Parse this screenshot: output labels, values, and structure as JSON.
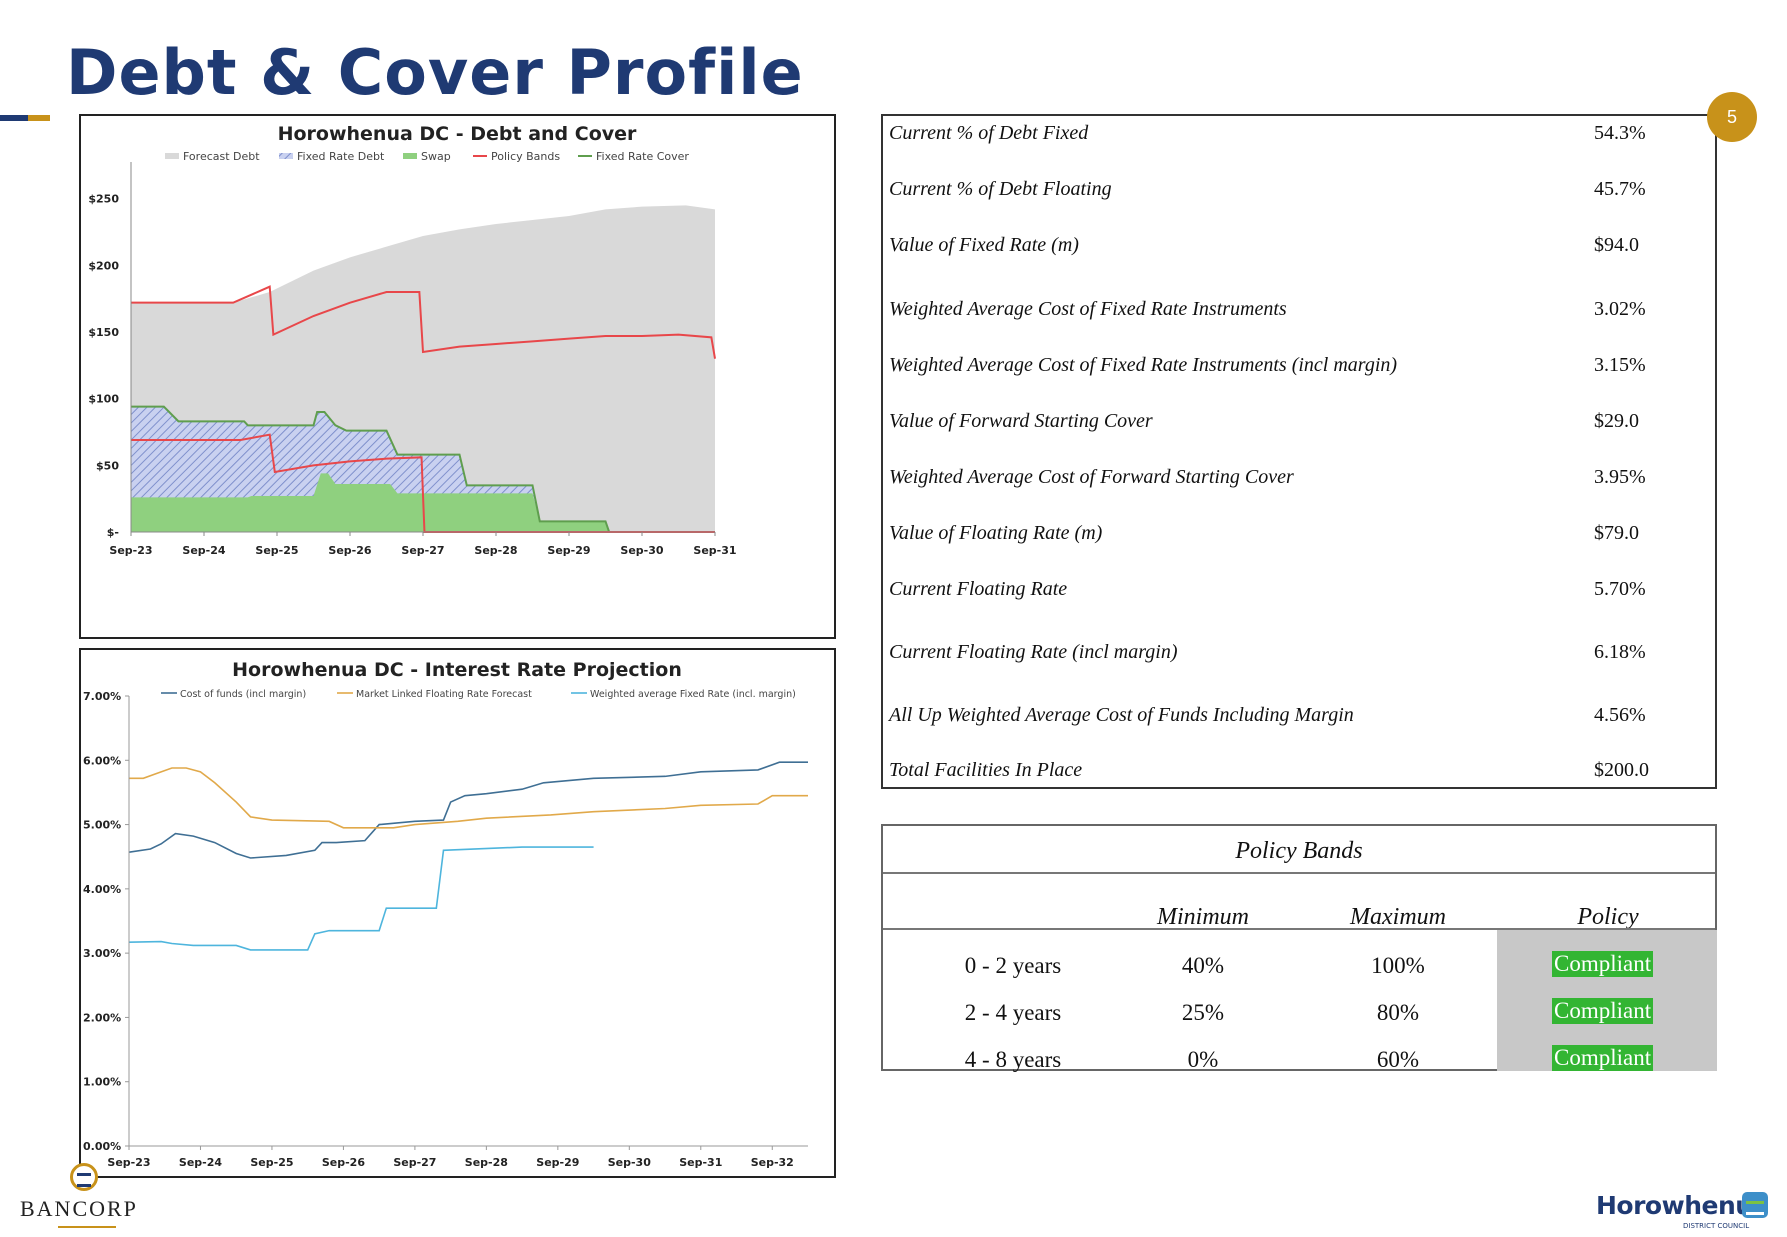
{
  "page": {
    "title": "Debt & Cover Profile",
    "page_number": "5",
    "footer_left": "BANCORP",
    "footer_right": "Horowhenua",
    "footer_right_sub": "DISTRICT COUNCIL"
  },
  "metrics": [
    {
      "label": "Current % of Debt Fixed",
      "value": "54.3%"
    },
    {
      "label": "Current % of Debt Floating",
      "value": "45.7%"
    },
    {
      "label": "Value of Fixed Rate (m)",
      "value": "$94.0"
    },
    {
      "label": "Weighted Average Cost of Fixed Rate Instruments",
      "value": "3.02%"
    },
    {
      "label": "Weighted Average Cost of Fixed Rate Instruments (incl margin)",
      "value": "3.15%"
    },
    {
      "label": "Value of Forward Starting Cover",
      "value": "$29.0"
    },
    {
      "label": "Weighted Average Cost of Forward Starting Cover",
      "value": "3.95%"
    },
    {
      "label": "Value of Floating Rate (m)",
      "value": "$79.0"
    },
    {
      "label": "Current Floating Rate",
      "value": "5.70%"
    },
    {
      "label": "Current Floating Rate (incl margin)",
      "value": "6.18%"
    },
    {
      "label": "All Up Weighted Average Cost of Funds Including Margin",
      "value": "4.56%"
    },
    {
      "label": "Total Facilities In Place",
      "value": "$200.0"
    }
  ],
  "policy_bands": {
    "title": "Policy Bands",
    "headers": [
      "Minimum",
      "Maximum",
      "Policy"
    ],
    "rows": [
      {
        "band": "0 - 2 years",
        "min": "40%",
        "max": "100%",
        "policy": "Compliant"
      },
      {
        "band": "2 - 4 years",
        "min": "25%",
        "max": "80%",
        "policy": "Compliant"
      },
      {
        "band": "4 - 8 years",
        "min": "0%",
        "max": "60%",
        "policy": "Compliant"
      }
    ]
  },
  "chart_data": [
    {
      "type": "area",
      "title": "Horowhenua DC - Debt and Cover",
      "x_ticks": [
        "Sep-23",
        "Sep-24",
        "Sep-25",
        "Sep-26",
        "Sep-27",
        "Sep-28",
        "Sep-29",
        "Sep-30",
        "Sep-31"
      ],
      "y_ticks": [
        "$-",
        "$50",
        "$100",
        "$150",
        "$200",
        "$250"
      ],
      "ylim": [
        0,
        270
      ],
      "xlim": [
        0,
        8
      ],
      "legend": [
        "Forecast Debt",
        "Fixed Rate Debt",
        "Swap",
        "Policy Bands",
        "Fixed Rate Cover"
      ],
      "legend_position": "top",
      "colors": {
        "forecast": "#d9d9d9",
        "fixed": "#c3cbee",
        "fixed_hatch": "#7f90cc",
        "swap": "#8fd07f",
        "policy": "#e8474a",
        "cover": "#5f9e4e"
      },
      "series": {
        "forecast_debt": [
          [
            0,
            172
          ],
          [
            1.4,
            172
          ],
          [
            1.9,
            180
          ],
          [
            2.5,
            196
          ],
          [
            3,
            206
          ],
          [
            3.5,
            214
          ],
          [
            4,
            222
          ],
          [
            4.5,
            227
          ],
          [
            5,
            231
          ],
          [
            5.5,
            234
          ],
          [
            6,
            237
          ],
          [
            6.5,
            242
          ],
          [
            7,
            244
          ],
          [
            7.6,
            245
          ],
          [
            8,
            242
          ]
        ],
        "fixed_rate_cover": [
          [
            0,
            94
          ],
          [
            0.45,
            94
          ],
          [
            0.65,
            83
          ],
          [
            1.55,
            83
          ],
          [
            1.6,
            80
          ],
          [
            2.5,
            80
          ],
          [
            2.55,
            90
          ],
          [
            2.65,
            90
          ],
          [
            2.8,
            80
          ],
          [
            2.95,
            76
          ],
          [
            3.5,
            76
          ],
          [
            3.65,
            58
          ],
          [
            4.5,
            58
          ],
          [
            4.6,
            35
          ],
          [
            5.5,
            35
          ],
          [
            5.6,
            8
          ],
          [
            6.5,
            8
          ],
          [
            6.55,
            0
          ],
          [
            8,
            0
          ]
        ],
        "swap": [
          [
            0,
            26
          ],
          [
            1.6,
            26
          ],
          [
            1.65,
            27
          ],
          [
            2.5,
            27
          ],
          [
            2.6,
            44
          ],
          [
            2.7,
            44
          ],
          [
            2.8,
            36
          ],
          [
            3.55,
            36
          ],
          [
            3.65,
            29
          ],
          [
            5.5,
            29
          ],
          [
            5.6,
            8
          ],
          [
            6.5,
            8
          ],
          [
            6.55,
            0
          ],
          [
            8,
            0
          ]
        ],
        "policy_upper": [
          [
            0,
            172
          ],
          [
            1.4,
            172
          ],
          [
            1.9,
            184
          ],
          [
            1.95,
            148
          ],
          [
            2.5,
            162
          ],
          [
            3,
            172
          ],
          [
            3.5,
            180
          ],
          [
            3.95,
            180
          ],
          [
            4,
            135
          ],
          [
            4.5,
            139
          ],
          [
            5,
            141
          ],
          [
            5.5,
            143
          ],
          [
            6,
            145
          ],
          [
            6.5,
            147
          ],
          [
            7,
            147
          ],
          [
            7.5,
            148
          ],
          [
            7.95,
            146
          ],
          [
            8,
            130
          ]
        ],
        "policy_lower": [
          [
            0,
            69
          ],
          [
            1.5,
            69
          ],
          [
            1.9,
            73
          ],
          [
            1.97,
            45
          ],
          [
            2.5,
            50
          ],
          [
            3,
            53
          ],
          [
            3.5,
            55
          ],
          [
            3.98,
            56
          ],
          [
            4.02,
            0
          ],
          [
            8,
            0
          ]
        ]
      }
    },
    {
      "type": "line",
      "title": "Horowhenua DC - Interest Rate Projection",
      "x_ticks": [
        "Sep-23",
        "Sep-24",
        "Sep-25",
        "Sep-26",
        "Sep-27",
        "Sep-28",
        "Sep-29",
        "Sep-30",
        "Sep-31",
        "Sep-32"
      ],
      "y_ticks": [
        "0.00%",
        "1.00%",
        "2.00%",
        "3.00%",
        "4.00%",
        "5.00%",
        "6.00%",
        "7.00%"
      ],
      "ylim": [
        0,
        7
      ],
      "xlim": [
        0,
        9.5
      ],
      "legend_position": "top",
      "series": [
        {
          "name": "Cost of funds (incl margin)",
          "color": "#3f6f94",
          "points": [
            [
              0,
              4.57
            ],
            [
              0.3,
              4.62
            ],
            [
              0.45,
              4.7
            ],
            [
              0.65,
              4.86
            ],
            [
              0.9,
              4.82
            ],
            [
              1.2,
              4.72
            ],
            [
              1.5,
              4.55
            ],
            [
              1.7,
              4.48
            ],
            [
              2.2,
              4.52
            ],
            [
              2.6,
              4.6
            ],
            [
              2.7,
              4.72
            ],
            [
              2.9,
              4.72
            ],
            [
              3.3,
              4.75
            ],
            [
              3.5,
              5.0
            ],
            [
              4.0,
              5.05
            ],
            [
              4.4,
              5.07
            ],
            [
              4.5,
              5.35
            ],
            [
              4.7,
              5.45
            ],
            [
              5.0,
              5.48
            ],
            [
              5.5,
              5.55
            ],
            [
              5.8,
              5.65
            ],
            [
              6.5,
              5.72
            ],
            [
              7.5,
              5.75
            ],
            [
              8.0,
              5.82
            ],
            [
              8.8,
              5.85
            ],
            [
              9.1,
              5.97
            ],
            [
              9.5,
              5.97
            ]
          ]
        },
        {
          "name": "Market Linked Floating Rate Forecast",
          "color": "#e1a94a",
          "points": [
            [
              0,
              5.72
            ],
            [
              0.2,
              5.72
            ],
            [
              0.4,
              5.8
            ],
            [
              0.6,
              5.88
            ],
            [
              0.8,
              5.88
            ],
            [
              1.0,
              5.82
            ],
            [
              1.2,
              5.65
            ],
            [
              1.5,
              5.35
            ],
            [
              1.7,
              5.12
            ],
            [
              2.0,
              5.07
            ],
            [
              2.8,
              5.05
            ],
            [
              3.0,
              4.95
            ],
            [
              3.7,
              4.95
            ],
            [
              4.0,
              5.0
            ],
            [
              4.6,
              5.05
            ],
            [
              5.0,
              5.1
            ],
            [
              5.9,
              5.15
            ],
            [
              6.5,
              5.2
            ],
            [
              7.5,
              5.25
            ],
            [
              8.0,
              5.3
            ],
            [
              8.8,
              5.32
            ],
            [
              9.0,
              5.45
            ],
            [
              9.5,
              5.45
            ]
          ]
        },
        {
          "name": "Weighted average Fixed Rate (incl. margin)",
          "color": "#4eb5dd",
          "points": [
            [
              0,
              3.17
            ],
            [
              0.45,
              3.18
            ],
            [
              0.6,
              3.15
            ],
            [
              0.9,
              3.12
            ],
            [
              1.5,
              3.12
            ],
            [
              1.7,
              3.05
            ],
            [
              2.5,
              3.05
            ],
            [
              2.6,
              3.3
            ],
            [
              2.8,
              3.35
            ],
            [
              3.5,
              3.35
            ],
            [
              3.6,
              3.7
            ],
            [
              4.3,
              3.7
            ],
            [
              4.4,
              4.6
            ],
            [
              5.5,
              4.65
            ],
            [
              6.5,
              4.65
            ]
          ]
        }
      ]
    }
  ]
}
